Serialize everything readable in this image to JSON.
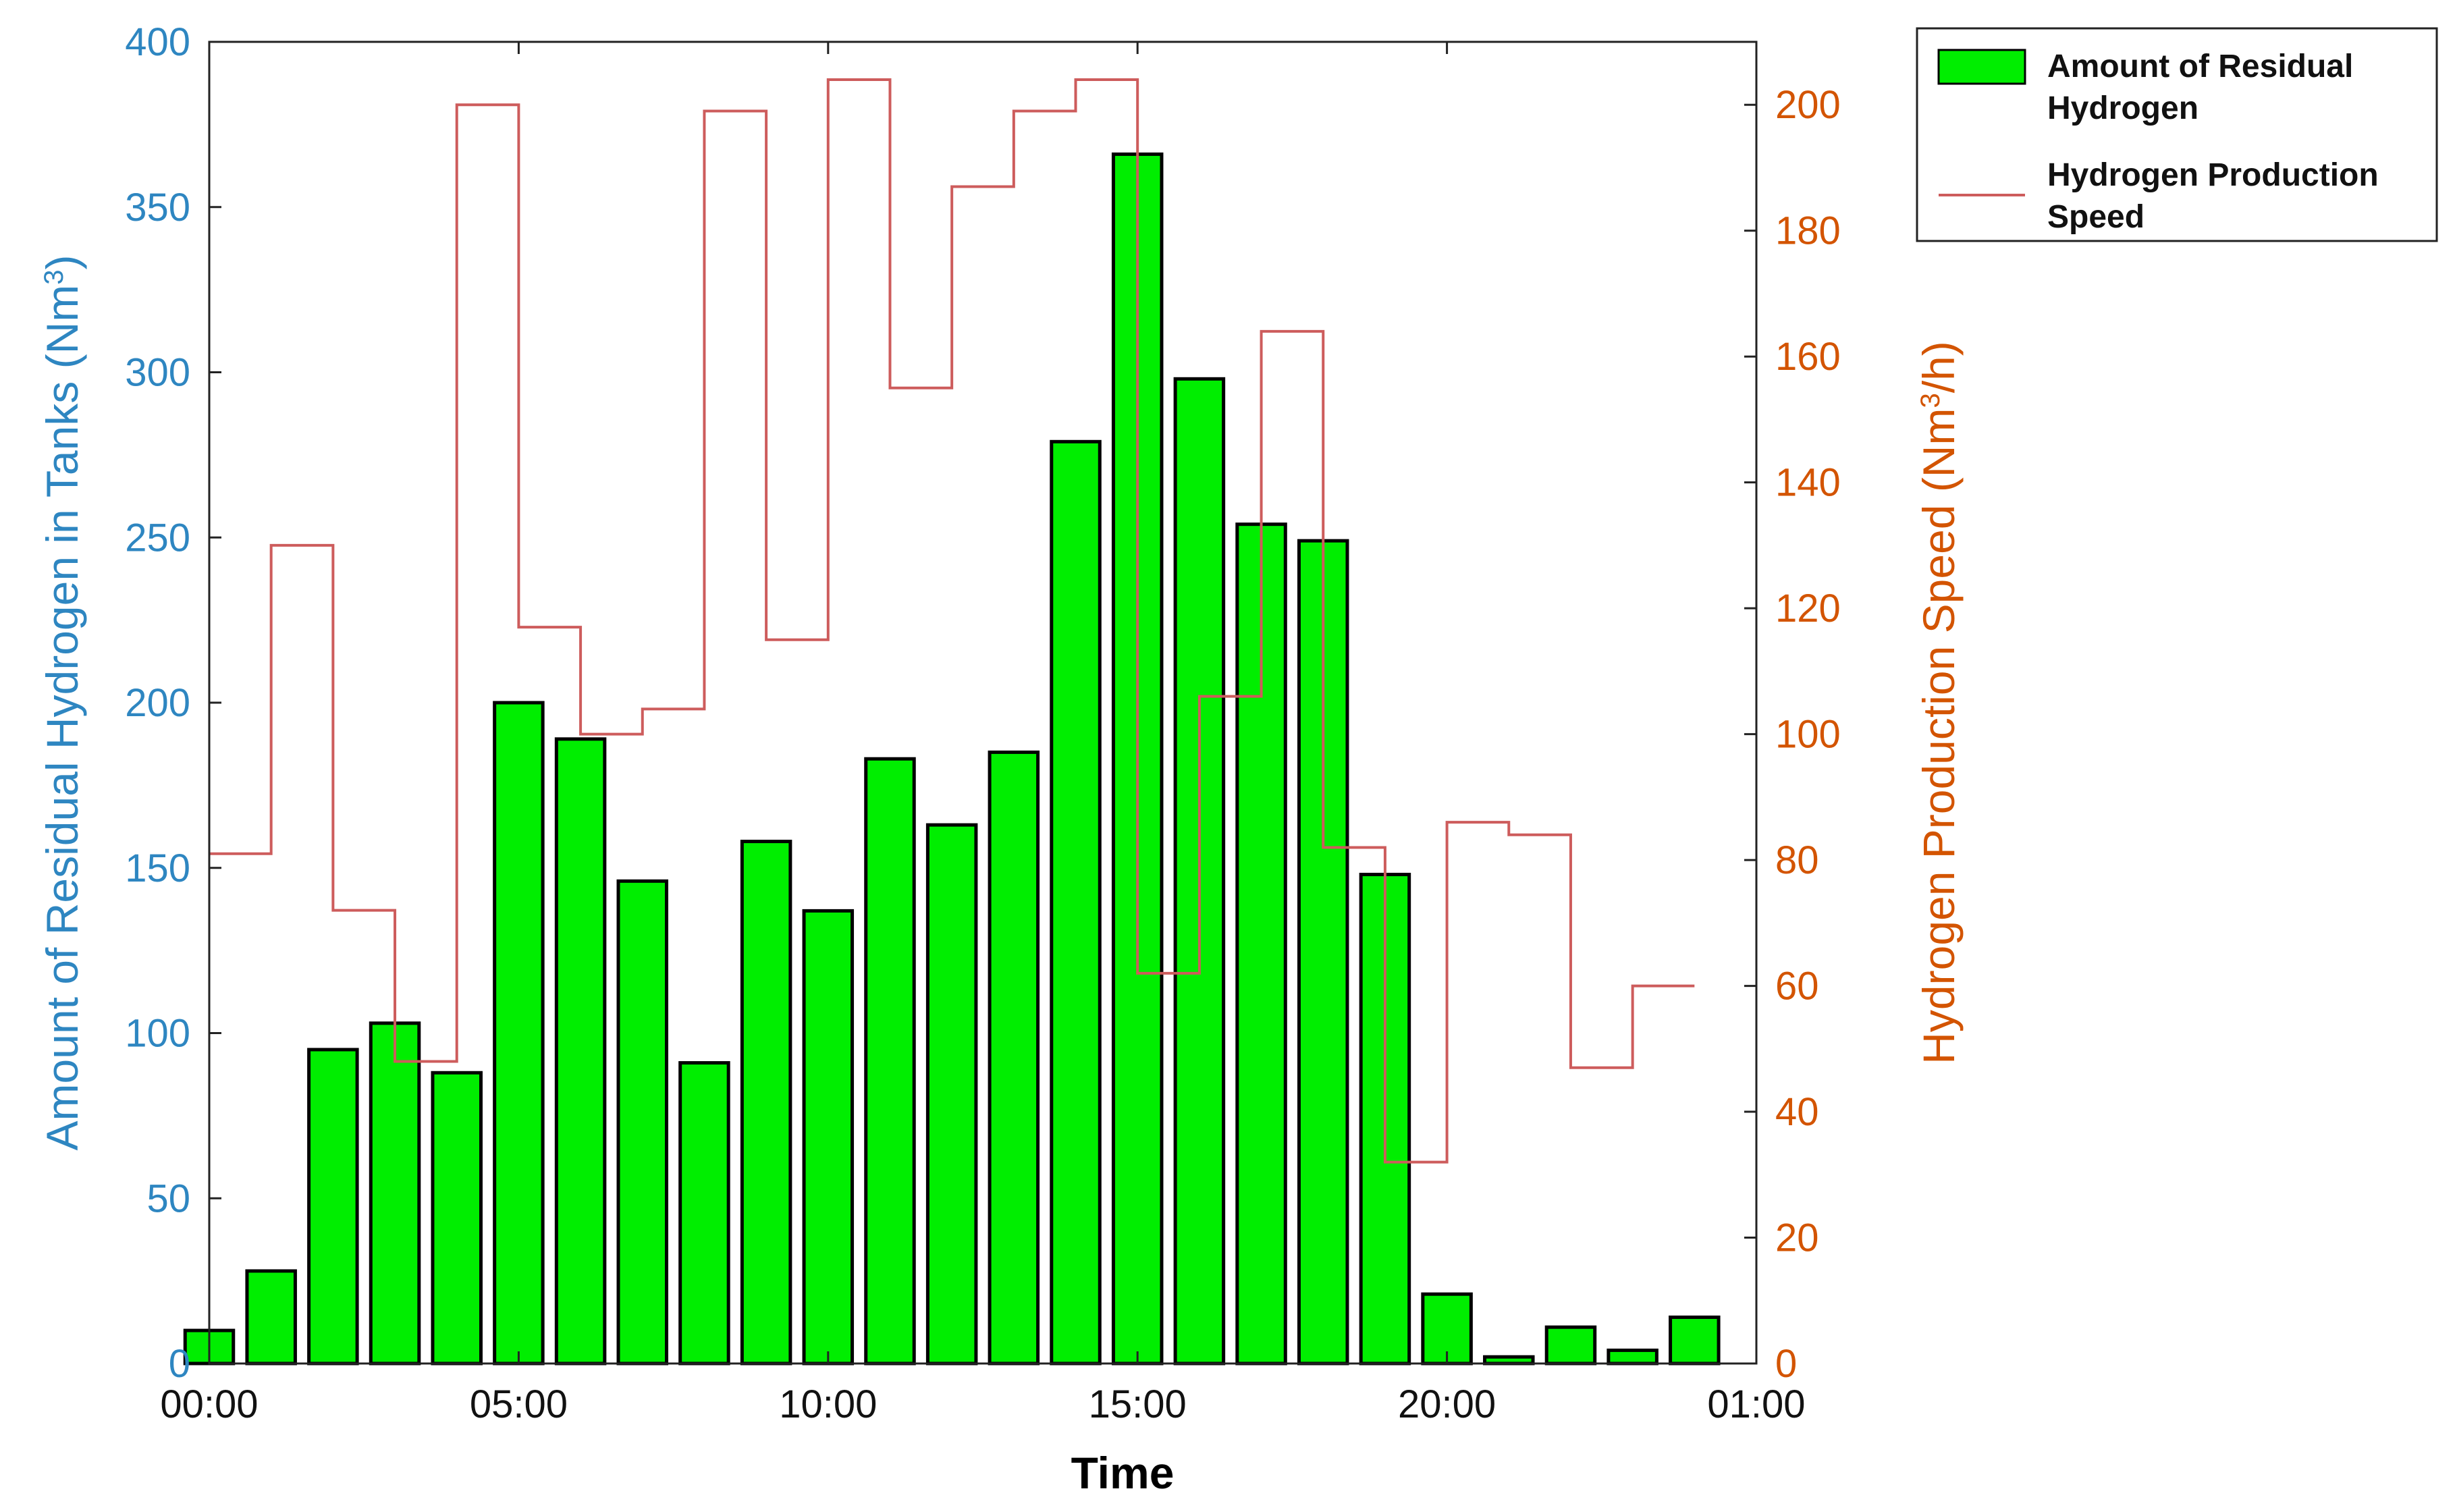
{
  "chart_data": {
    "type": "bar",
    "xlabel": "Time",
    "ylabel_left": "Amount of Residual Hydrogen in Tanks (Nm",
    "ylabel_left_sup": "3",
    "ylabel_left_suffix": ")",
    "ylabel_right": "Hydrogen Production Speed (Nm",
    "ylabel_right_sup": "3",
    "ylabel_right_suffix": "/h)",
    "x_range_hours": [
      0,
      25
    ],
    "x_ticks": [
      {
        "hour": 0,
        "label": "00:00"
      },
      {
        "hour": 5,
        "label": "05:00"
      },
      {
        "hour": 10,
        "label": "10:00"
      },
      {
        "hour": 15,
        "label": "15:00"
      },
      {
        "hour": 20,
        "label": "20:00"
      },
      {
        "hour": 25,
        "label": "01:00"
      }
    ],
    "ylim_left": [
      0,
      400
    ],
    "yticks_left": [
      0,
      50,
      100,
      150,
      200,
      250,
      300,
      350,
      400
    ],
    "ylim_right": [
      0,
      210
    ],
    "yticks_right": [
      0,
      20,
      40,
      60,
      80,
      100,
      120,
      140,
      160,
      180,
      200
    ],
    "legend_position": "outside-top-right",
    "series": [
      {
        "name": "Amount of Residual Hydrogen",
        "legend_line1": "Amount of Residual",
        "legend_line2": "Hydrogen",
        "type": "bar",
        "axis": "left",
        "color": "#00ee00",
        "edge_color": "#000000",
        "hours": [
          0,
          1,
          2,
          3,
          4,
          5,
          6,
          7,
          8,
          9,
          10,
          11,
          12,
          13,
          14,
          15,
          16,
          17,
          18,
          19,
          20,
          21,
          22,
          23,
          24
        ],
        "values": [
          10,
          28,
          95,
          103,
          88,
          200,
          189,
          146,
          91,
          158,
          137,
          183,
          163,
          185,
          279,
          366,
          298,
          254,
          249,
          148,
          21,
          2,
          11,
          4,
          14
        ]
      },
      {
        "name": "Hydrogen Production Speed",
        "legend_line1": "Hydrogen Production",
        "legend_line2": "Speed",
        "type": "step",
        "axis": "right",
        "color": "#cd5c5c",
        "start_hours": [
          0,
          1,
          2,
          3,
          4,
          5,
          6,
          7,
          8,
          9,
          10,
          11,
          12,
          13,
          14,
          15,
          16,
          17,
          18,
          19,
          20,
          21,
          22,
          23
        ],
        "end_hour": 24,
        "values": [
          81,
          130,
          72,
          48,
          200,
          117,
          100,
          104,
          199,
          115,
          204,
          155,
          187,
          199,
          204,
          62,
          106,
          164,
          82,
          32,
          86,
          84,
          47,
          60
        ]
      }
    ]
  }
}
